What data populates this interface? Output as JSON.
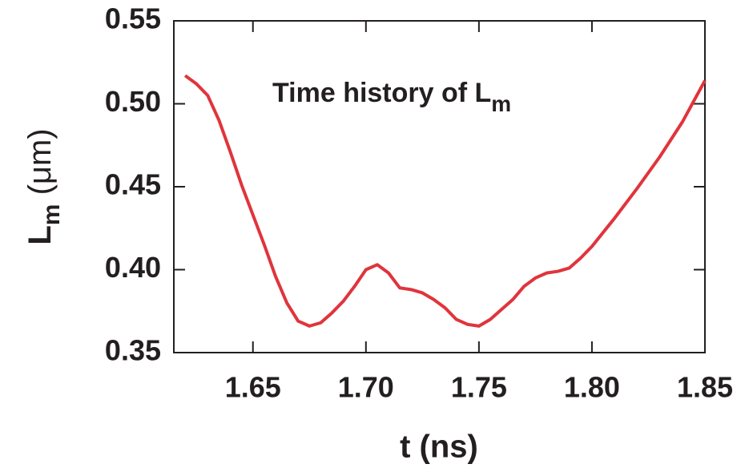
{
  "chart_data": {
    "type": "line",
    "title": {
      "text": "Time history of L",
      "subscript": "m"
    },
    "xlabel": "t (ns)",
    "ylabel": {
      "text": "L",
      "subscript": "m",
      "unit": " (μm)"
    },
    "x": [
      1.62,
      1.625,
      1.63,
      1.635,
      1.64,
      1.645,
      1.65,
      1.655,
      1.66,
      1.665,
      1.67,
      1.675,
      1.68,
      1.685,
      1.69,
      1.695,
      1.7,
      1.705,
      1.71,
      1.715,
      1.72,
      1.725,
      1.73,
      1.735,
      1.74,
      1.745,
      1.75,
      1.755,
      1.76,
      1.765,
      1.77,
      1.775,
      1.78,
      1.785,
      1.79,
      1.795,
      1.8,
      1.81,
      1.82,
      1.83,
      1.84,
      1.85
    ],
    "series": [
      {
        "color": "#e0343c",
        "values": [
          0.517,
          0.512,
          0.505,
          0.49,
          0.471,
          0.451,
          0.433,
          0.415,
          0.396,
          0.38,
          0.369,
          0.366,
          0.368,
          0.374,
          0.381,
          0.39,
          0.4,
          0.403,
          0.398,
          0.389,
          0.388,
          0.386,
          0.382,
          0.377,
          0.37,
          0.367,
          0.366,
          0.37,
          0.376,
          0.382,
          0.39,
          0.395,
          0.398,
          0.399,
          0.401,
          0.407,
          0.414,
          0.431,
          0.449,
          0.468,
          0.489,
          0.514
        ]
      }
    ],
    "xlim": [
      1.615,
      1.85
    ],
    "ylim": [
      0.35,
      0.55
    ],
    "xticks": [
      1.65,
      {
        "value": 1.7,
        "label": "1.70"
      },
      1.75,
      {
        "value": 1.8,
        "label": "1.80"
      },
      1.85
    ],
    "yticks": [
      0.35,
      {
        "value": 0.4,
        "label": "0.40"
      },
      0.45,
      {
        "value": 0.5,
        "label": "0.50"
      },
      0.55
    ],
    "grid": false
  }
}
